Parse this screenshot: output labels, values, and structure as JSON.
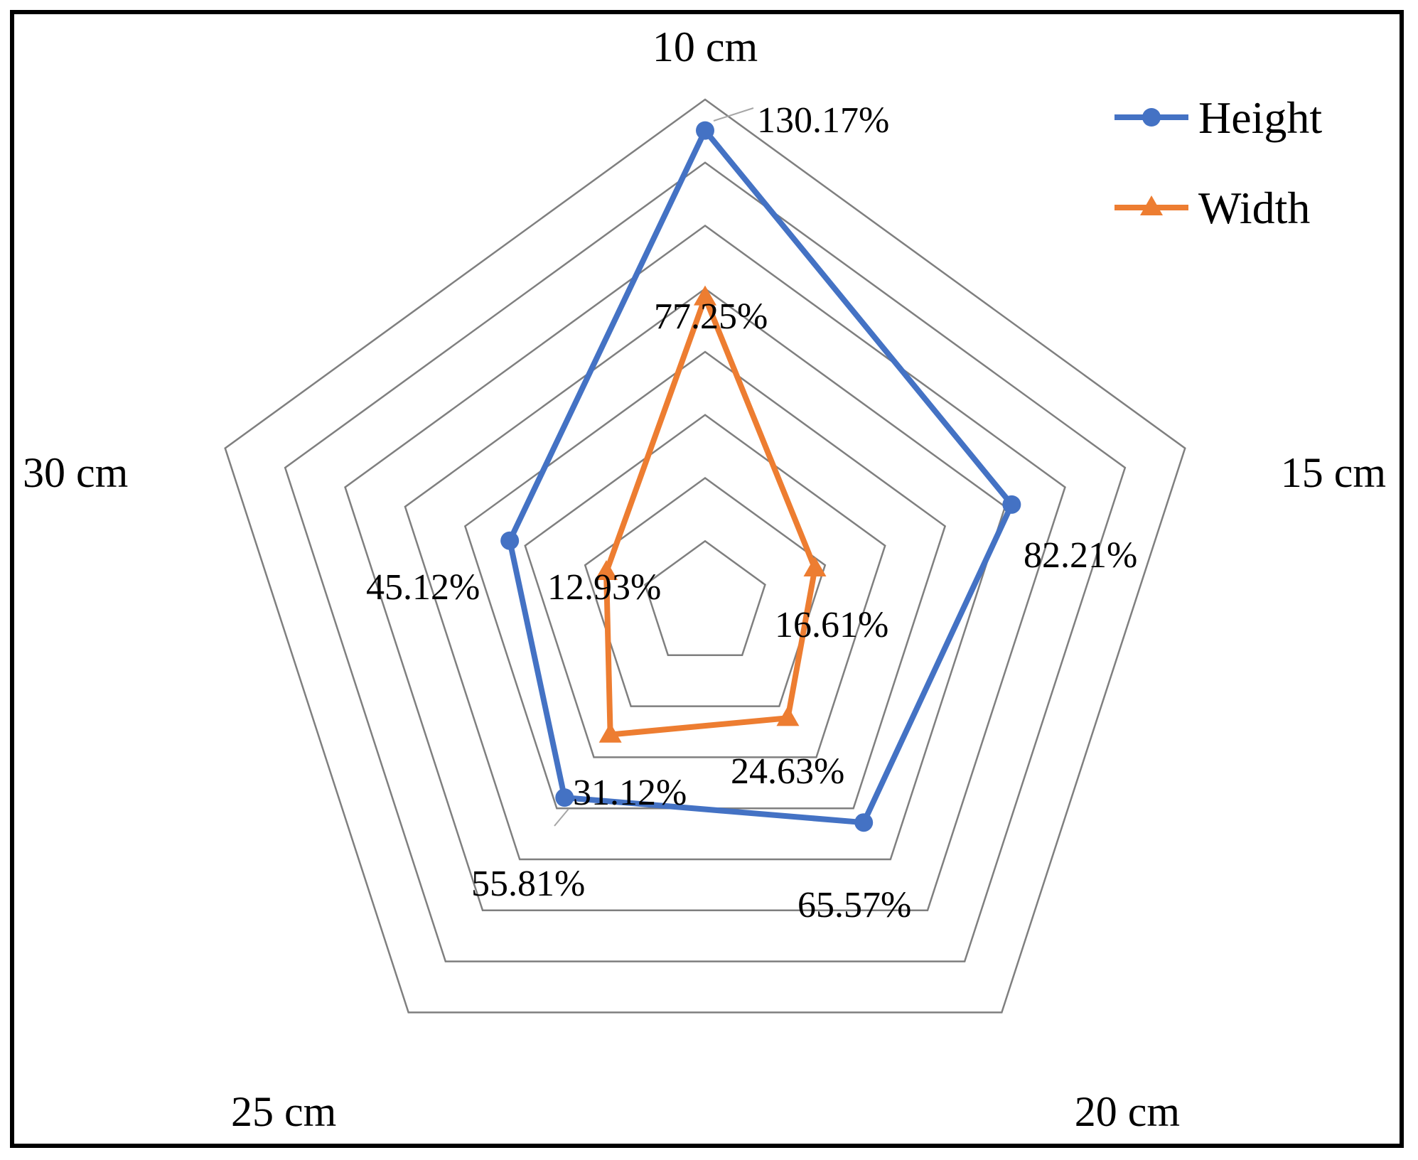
{
  "chart_data": {
    "type": "radar",
    "categories": [
      "10 cm",
      "15 cm",
      "20 cm",
      "25 cm",
      "30 cm"
    ],
    "series": [
      {
        "name": "Height",
        "values": [
          130.17,
          82.21,
          65.57,
          55.81,
          45.12
        ],
        "labels": [
          "130.17%",
          "82.21%",
          "65.57%",
          "55.81%",
          "45.12%"
        ],
        "color": "#4472C4",
        "marker": "circle"
      },
      {
        "name": "Width",
        "values": [
          77.25,
          16.61,
          24.63,
          31.12,
          12.93
        ],
        "labels": [
          "77.25%",
          "16.61%",
          "24.63%",
          "31.12%",
          "12.93%"
        ],
        "color": "#ED7D31",
        "marker": "triangle"
      }
    ],
    "rlim": [
      -20,
      140
    ],
    "grid": true,
    "grid_color": "#7f7f7f",
    "legend_position": "top-right"
  }
}
